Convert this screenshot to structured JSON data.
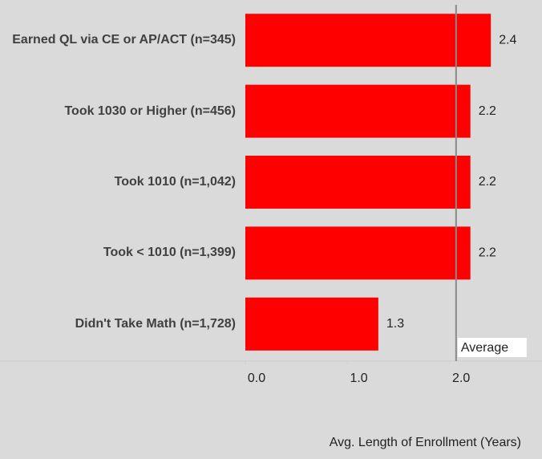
{
  "chart_data": {
    "type": "hbar",
    "categories": [
      "Earned QL via CE or AP/ACT (n=345)",
      "Took 1030 or Higher (n=456)",
      "Took 1010 (n=1,042)",
      "Took < 1010 (n=1,399)",
      "Didn't Take Math (n=1,728)"
    ],
    "values": [
      2.4,
      2.2,
      2.2,
      2.2,
      1.3
    ],
    "color": "#ff0000",
    "xlim": [
      0,
      2.9
    ],
    "xticks": [
      {
        "value": 0,
        "label": "0.0"
      },
      {
        "value": 1,
        "label": "1.0"
      },
      {
        "value": 2,
        "label": "2.0"
      }
    ],
    "x_label": "Avg. Length of Enrollment (Years)",
    "reference_line": {
      "value": 2.06,
      "label": "Average"
    }
  }
}
